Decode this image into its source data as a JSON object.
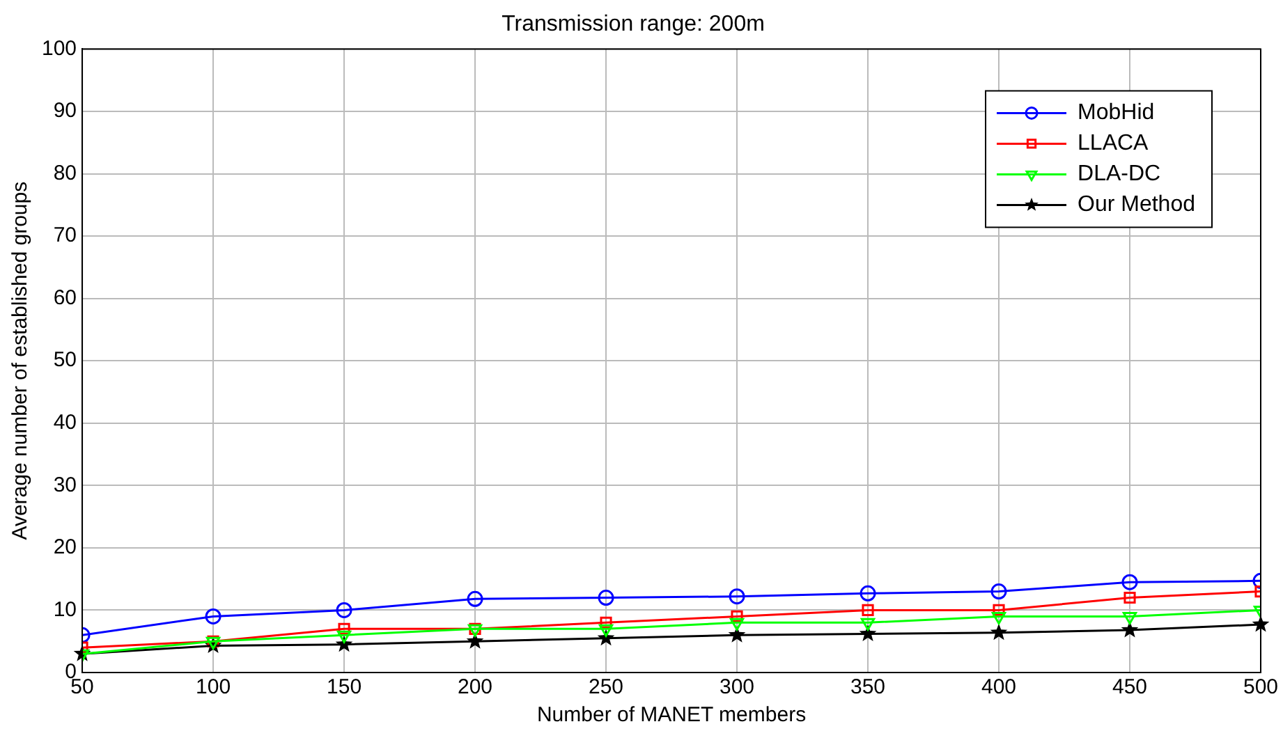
{
  "chart_data": {
    "type": "line",
    "title": "Transmission range: 200m",
    "xlabel": "Number of MANET members",
    "ylabel": "Average number of established groups",
    "x": [
      50,
      100,
      150,
      200,
      250,
      300,
      350,
      400,
      450,
      500
    ],
    "xlim": [
      50,
      500
    ],
    "xticks": [
      50,
      100,
      150,
      200,
      250,
      300,
      350,
      400,
      450,
      500
    ],
    "ylim": [
      0,
      100
    ],
    "yticks": [
      0,
      10,
      20,
      30,
      40,
      50,
      60,
      70,
      80,
      90,
      100
    ],
    "grid": true,
    "legend": "top right",
    "line_style": "solid",
    "series": [
      {
        "name": "MobHid",
        "color": "#0000ff",
        "marker": "circle",
        "values": [
          6,
          9,
          10,
          11.8,
          12,
          12.2,
          12.7,
          13,
          14.5,
          14.7
        ]
      },
      {
        "name": "LLACA",
        "color": "#ff0000",
        "marker": "square",
        "values": [
          4,
          5,
          7,
          7,
          8,
          9,
          10,
          10,
          12,
          13
        ]
      },
      {
        "name": "DLA-DC",
        "color": "#00ff00",
        "marker": "triangle",
        "values": [
          3,
          5,
          6,
          7,
          7,
          8,
          8,
          9,
          9,
          10
        ]
      },
      {
        "name": "Our Method",
        "color": "#000000",
        "marker": "star",
        "values": [
          3,
          4.3,
          4.5,
          5,
          5.5,
          6,
          6.2,
          6.4,
          6.8,
          7.7
        ]
      }
    ]
  }
}
